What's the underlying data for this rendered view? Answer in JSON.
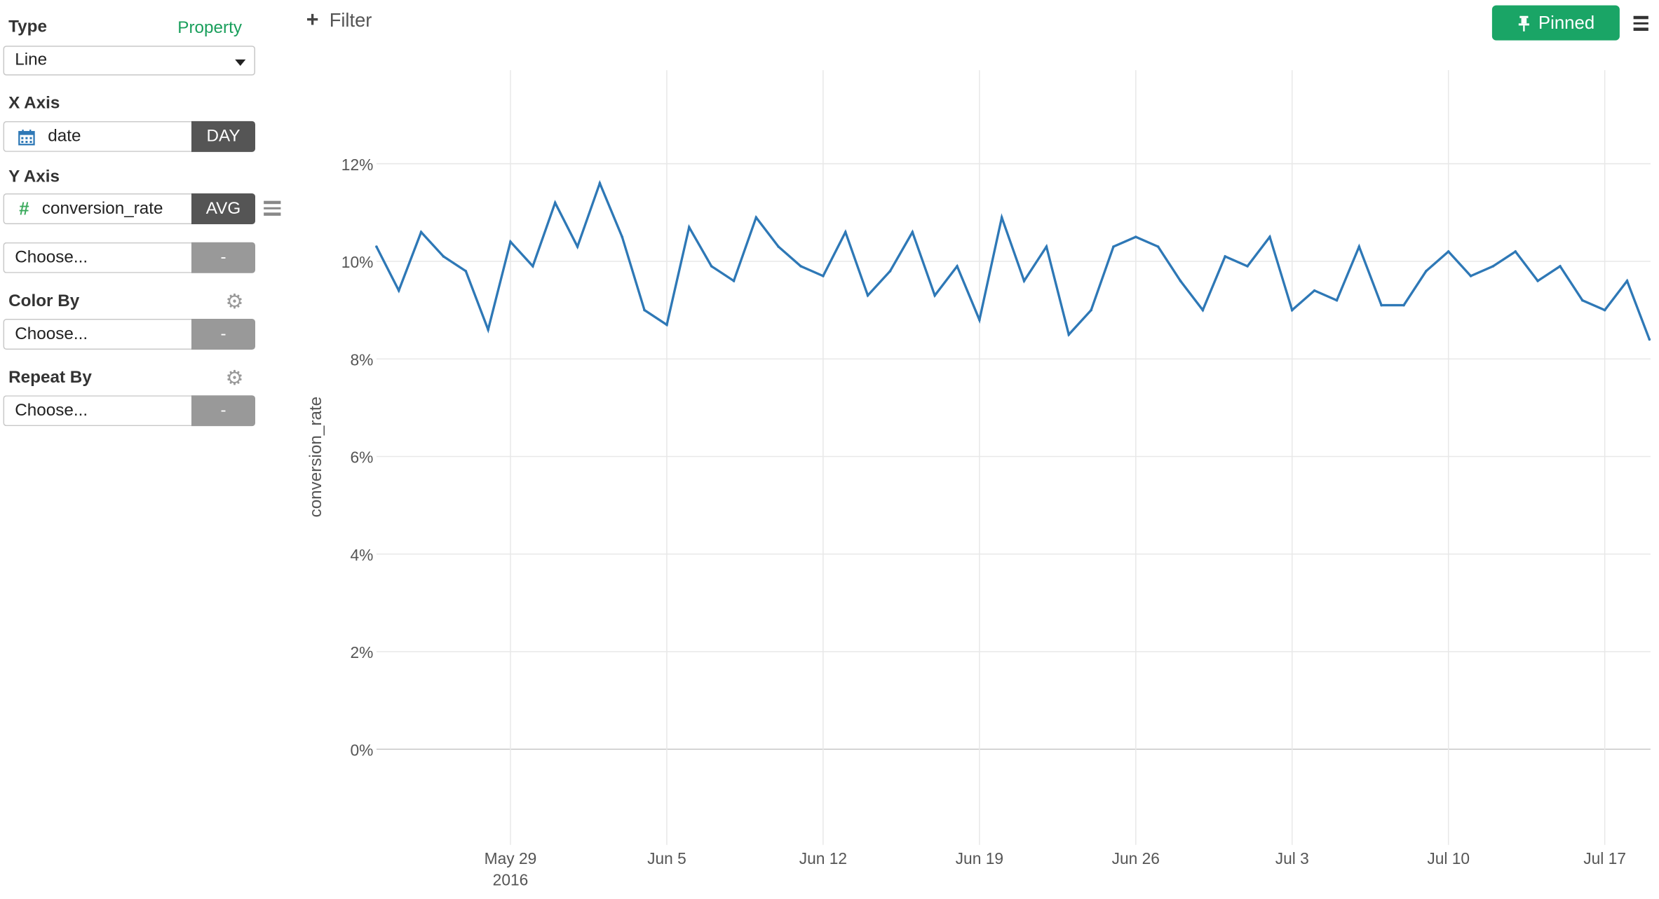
{
  "sidebar": {
    "type": {
      "label": "Type",
      "property_link": "Property",
      "value": "Line"
    },
    "x_axis": {
      "label": "X Axis",
      "field": "date",
      "aggregation": "DAY",
      "icon": "calendar-icon"
    },
    "y_axis": {
      "label": "Y Axis",
      "field": "conversion_rate",
      "aggregation": "AVG",
      "icon": "hash-icon",
      "extra_placeholder": "Choose...",
      "extra_agg": "-"
    },
    "color_by": {
      "label": "Color By",
      "placeholder": "Choose...",
      "agg": "-"
    },
    "repeat_by": {
      "label": "Repeat By",
      "placeholder": "Choose...",
      "agg": "-"
    }
  },
  "toolbar": {
    "filter_label": "Filter",
    "pinned_label": "Pinned"
  },
  "colors": {
    "accent": "#1aa566",
    "line": "#2e78b6",
    "grid": "#e8e8e8"
  },
  "chart_data": {
    "type": "line",
    "ylabel": "conversion_rate",
    "ylim": [
      -0.02,
      0.12
    ],
    "yticks": [
      "12%",
      "10%",
      "8%",
      "6%",
      "4%",
      "2%",
      "0%"
    ],
    "xticks": [
      "May 29",
      "Jun 5",
      "Jun 12",
      "Jun 19",
      "Jun 26",
      "Jul 3",
      "Jul 10",
      "Jul 17"
    ],
    "xtick_year": "2016",
    "grid": true,
    "series": [
      {
        "x": [
          "2016-05-23",
          "2016-05-24",
          "2016-05-25",
          "2016-05-26",
          "2016-05-27",
          "2016-05-28",
          "2016-05-29",
          "2016-05-30",
          "2016-05-31",
          "2016-06-01",
          "2016-06-02",
          "2016-06-03",
          "2016-06-04",
          "2016-06-05",
          "2016-06-06",
          "2016-06-07",
          "2016-06-08",
          "2016-06-09",
          "2016-06-10",
          "2016-06-11",
          "2016-06-12",
          "2016-06-13",
          "2016-06-14",
          "2016-06-15",
          "2016-06-16",
          "2016-06-17",
          "2016-06-18",
          "2016-06-19",
          "2016-06-20",
          "2016-06-21",
          "2016-06-22",
          "2016-06-23",
          "2016-06-24",
          "2016-06-25",
          "2016-06-26",
          "2016-06-27",
          "2016-06-28",
          "2016-06-29",
          "2016-06-30",
          "2016-07-01",
          "2016-07-02",
          "2016-07-03",
          "2016-07-04",
          "2016-07-05",
          "2016-07-06",
          "2016-07-07",
          "2016-07-08",
          "2016-07-09",
          "2016-07-10",
          "2016-07-11",
          "2016-07-12",
          "2016-07-13",
          "2016-07-14",
          "2016-07-15",
          "2016-07-16",
          "2016-07-17",
          "2016-07-18",
          "2016-07-19"
        ],
        "values": [
          0.103,
          0.094,
          0.106,
          0.101,
          0.098,
          0.086,
          0.104,
          0.099,
          0.112,
          0.103,
          0.116,
          0.105,
          0.09,
          0.087,
          0.107,
          0.099,
          0.096,
          0.109,
          0.103,
          0.099,
          0.097,
          0.106,
          0.093,
          0.098,
          0.106,
          0.093,
          0.099,
          0.088,
          0.109,
          0.096,
          0.103,
          0.085,
          0.09,
          0.103,
          0.105,
          0.103,
          0.096,
          0.09,
          0.101,
          0.099,
          0.105,
          0.09,
          0.094,
          0.092,
          0.103,
          0.091,
          0.091,
          0.098,
          0.102,
          0.097,
          0.099,
          0.102,
          0.096,
          0.099,
          0.092,
          0.09,
          0.096,
          0.084
        ]
      }
    ]
  }
}
